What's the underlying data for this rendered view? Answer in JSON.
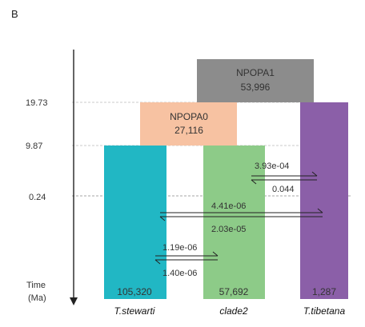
{
  "panel_label": "B",
  "time_axis": {
    "ticks": [
      "19.73",
      "9.87",
      "0.24"
    ],
    "label_line1": "Time",
    "label_line2": "(Ma)"
  },
  "ancestors": [
    {
      "name": "NPOPA1",
      "size": "53,996",
      "color": "#8c8c8c"
    },
    {
      "name": "NPOPA0",
      "size": "27,116",
      "color": "#f7c2a2"
    }
  ],
  "populations": [
    {
      "name": "T.stewarti",
      "size": "105,320",
      "color": "#21b7c4"
    },
    {
      "name": "clade2",
      "size": "57,692",
      "color": "#8dcb88"
    },
    {
      "name": "T.tibetana",
      "size": "1,287",
      "color": "#8b5fa8"
    }
  ],
  "migration_rates": {
    "clade2_tibetana_fwd": "3.93e-04",
    "clade2_tibetana_rev": "0.044",
    "stewarti_tibetana_fwd": "4.41e-06",
    "stewarti_tibetana_rev": "2.03e-05",
    "stewarti_clade2_fwd": "1.19e-06",
    "stewarti_clade2_rev": "1.40e-06"
  }
}
